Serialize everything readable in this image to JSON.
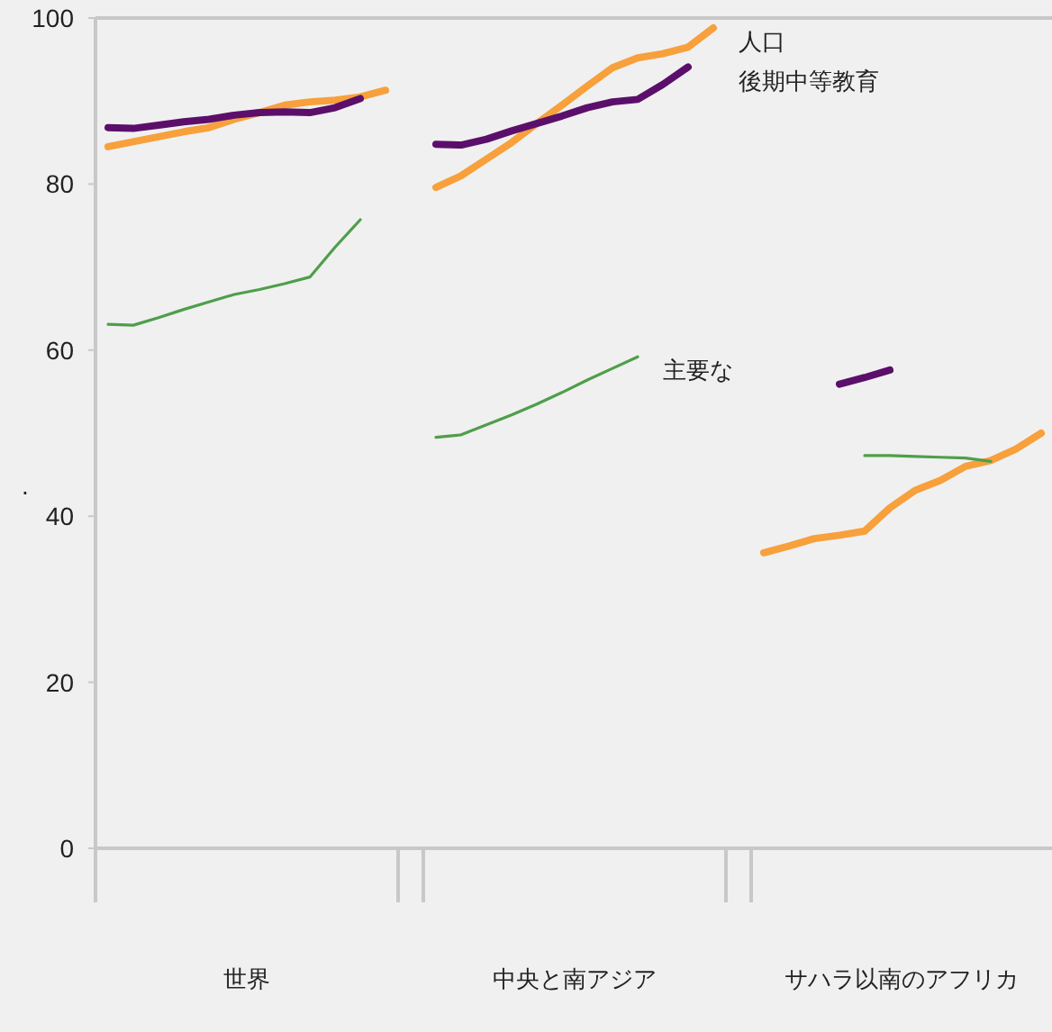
{
  "chart_data": {
    "type": "line",
    "ylabel": ".",
    "categories": [
      null,
      null,
      null,
      null,
      null,
      null,
      null,
      null,
      null,
      null,
      null,
      null,
      null,
      null,
      null,
      null,
      null,
      null,
      null,
      null,
      null,
      null,
      null,
      null,
      null,
      null,
      null,
      null,
      null,
      null,
      null,
      null,
      null,
      null,
      null,
      null,
      null,
      null
    ],
    "ylim": [
      0,
      100
    ],
    "yticks": [
      0,
      20,
      40,
      60,
      80,
      100
    ],
    "annotations": [
      "世界",
      "中央と南アジア",
      "サハラ以南のアフリカ"
    ],
    "series": [
      {
        "name": "人口",
        "color": "#f7a03c",
        "values": [
          84.5,
          85.1,
          85.7,
          86.3,
          86.8,
          87.8,
          88.6,
          89.5,
          89.9,
          90.1,
          90.5,
          91.3,
          null,
          79.6,
          81.0,
          83.0,
          85.0,
          87.3,
          89.5,
          91.8,
          94.0,
          95.2,
          95.7,
          96.5,
          98.8,
          null,
          35.6,
          36.4,
          37.3,
          37.7,
          38.2,
          41.0,
          43.1,
          44.3,
          46.0,
          46.7,
          48.1,
          50.0
        ]
      },
      {
        "name": "後期中等教育",
        "color": "#5b0f6b",
        "values": [
          86.8,
          86.7,
          87.1,
          87.5,
          87.8,
          88.3,
          88.6,
          88.7,
          88.6,
          89.2,
          90.3,
          null,
          null,
          84.8,
          84.7,
          85.4,
          86.4,
          87.3,
          88.2,
          89.2,
          89.9,
          90.2,
          92.0,
          94.1,
          null,
          null,
          null,
          null,
          null,
          55.9,
          56.7,
          57.6,
          null,
          null,
          null,
          null,
          null,
          null
        ]
      },
      {
        "name": "主要な",
        "color": "#4f9e4a",
        "values": [
          63.1,
          63.0,
          63.9,
          64.9,
          65.8,
          66.7,
          67.3,
          68.0,
          68.8,
          72.4,
          75.7,
          null,
          null,
          49.5,
          49.8,
          51.0,
          52.2,
          53.5,
          54.9,
          56.4,
          57.8,
          59.2,
          null,
          null,
          null,
          null,
          null,
          null,
          null,
          null,
          47.3,
          47.3,
          47.2,
          47.1,
          47.0,
          46.6,
          null,
          null
        ]
      }
    ]
  }
}
